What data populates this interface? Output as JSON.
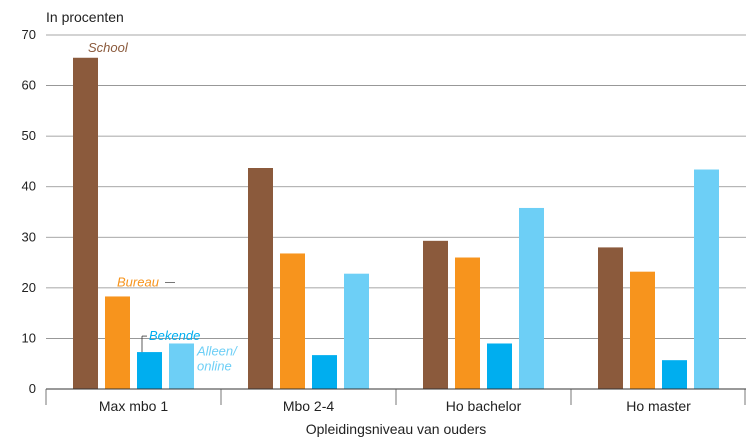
{
  "chart_data": {
    "type": "bar",
    "ylabel": "In procenten",
    "xlabel": "Opleidingsniveau van ouders",
    "ylim": [
      0,
      70
    ],
    "yticks": [
      0,
      10,
      20,
      30,
      40,
      50,
      60,
      70
    ],
    "grid": true,
    "categories": [
      "Max mbo 1",
      "Mbo 2-4",
      "Ho bachelor",
      "Ho master"
    ],
    "series": [
      {
        "name": "School",
        "color": "#8B5A3C",
        "values": [
          65.5,
          43.7,
          29.3,
          28.0
        ]
      },
      {
        "name": "Bureau",
        "color": "#F7941D",
        "values": [
          18.3,
          26.8,
          26.0,
          23.2
        ]
      },
      {
        "name": "Bekende",
        "color": "#00AEEF",
        "values": [
          7.3,
          6.7,
          9.0,
          5.7
        ]
      },
      {
        "name": "Alleen/ online",
        "color": "#6DCFF6",
        "values": [
          9.0,
          22.8,
          35.8,
          43.4
        ]
      }
    ],
    "annotations": [
      {
        "series": 0,
        "lines": [
          "School"
        ]
      },
      {
        "series": 1,
        "lines": [
          "Bureau"
        ]
      },
      {
        "series": 2,
        "lines": [
          "Bekende"
        ]
      },
      {
        "series": 3,
        "lines": [
          "Alleen/",
          "online"
        ]
      }
    ]
  }
}
